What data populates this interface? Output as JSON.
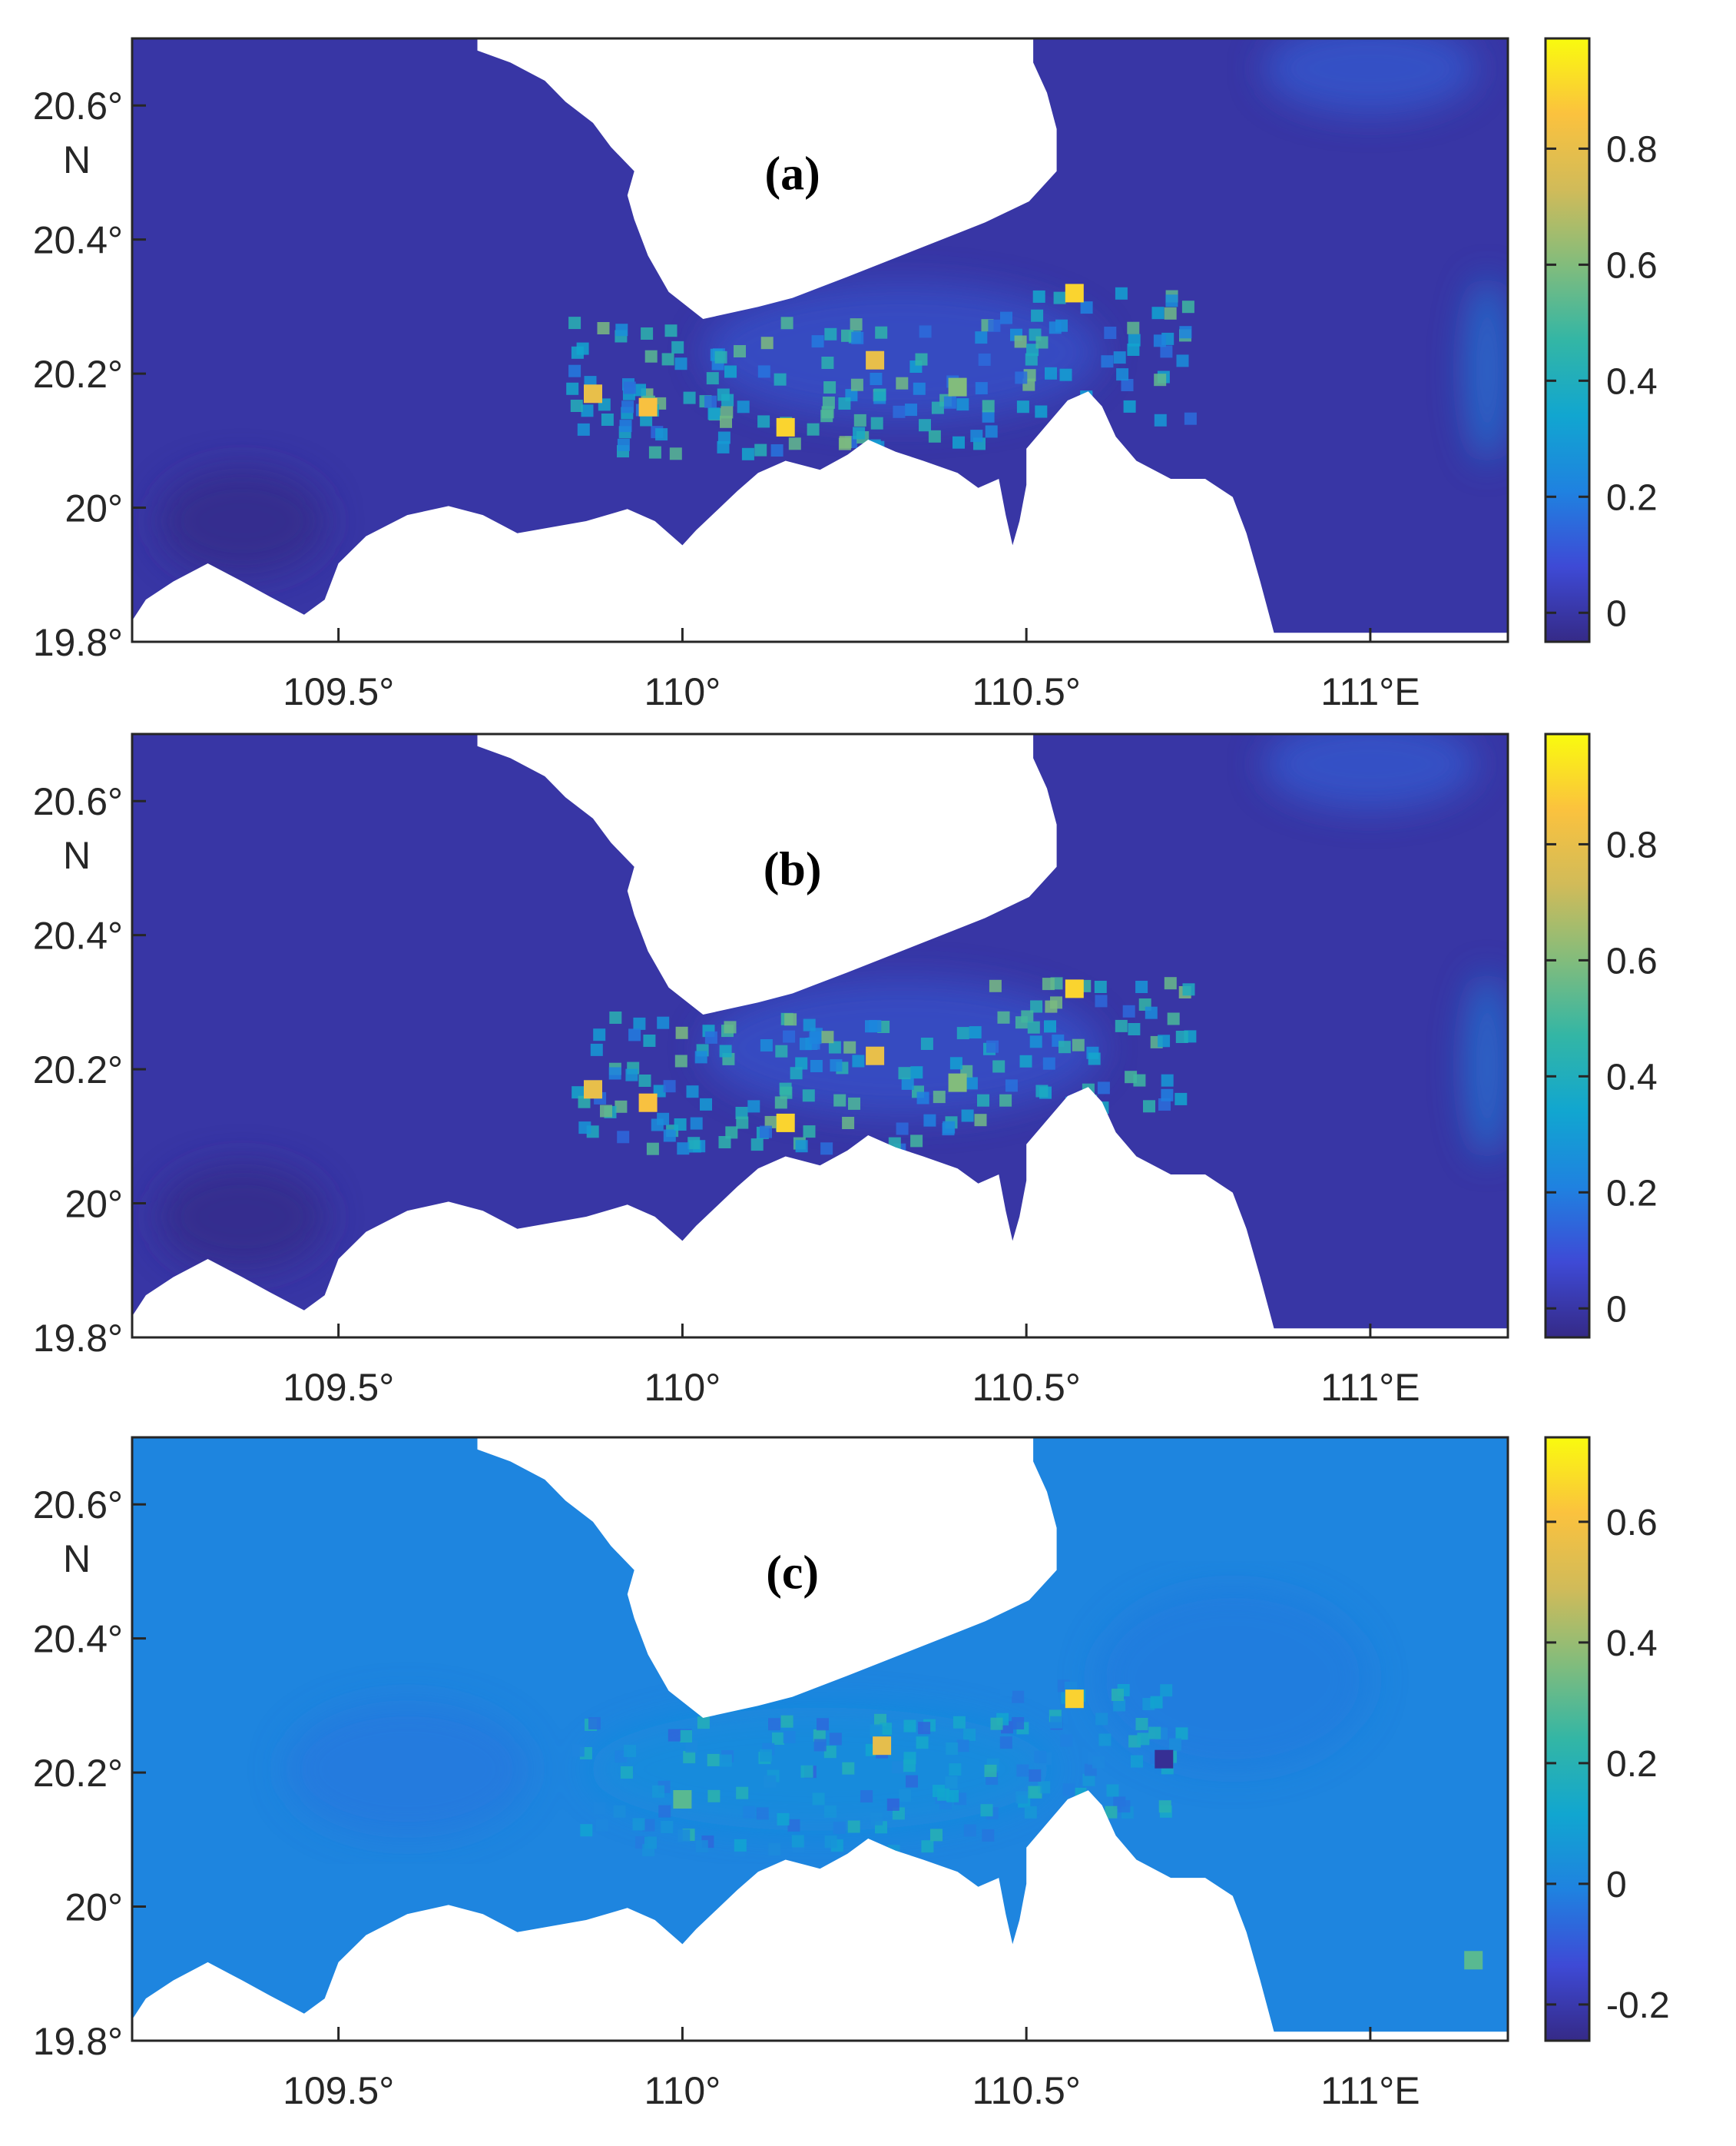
{
  "chart_data": [
    {
      "type": "heatmap",
      "panel_label": "(a)",
      "x_ticks": [
        "109.5°",
        "110°",
        "110.5°",
        "111°E"
      ],
      "y_ticks": [
        "20.6°",
        "N",
        "20.4°",
        "20.2°",
        "20°",
        "19.8°"
      ],
      "xlim": [
        109.2,
        111.2
      ],
      "ylim": [
        19.8,
        20.7
      ],
      "colorbar": {
        "ticks": [
          "0.8",
          "0.6",
          "0.4",
          "0.2",
          "0"
        ],
        "tick_values": [
          0.8,
          0.6,
          0.4,
          0.2,
          0
        ],
        "range": [
          -0.05,
          0.99
        ]
      },
      "colormap": "parula",
      "hotspots": [
        {
          "lon": 110.57,
          "lat": 20.32,
          "value": 0.9
        },
        {
          "lon": 110.28,
          "lat": 20.22,
          "value": 0.8
        },
        {
          "lon": 109.95,
          "lat": 20.15,
          "value": 0.85
        },
        {
          "lon": 110.15,
          "lat": 20.12,
          "value": 0.9
        },
        {
          "lon": 109.87,
          "lat": 20.17,
          "value": 0.8
        },
        {
          "lon": 110.4,
          "lat": 20.18,
          "value": 0.6
        }
      ]
    },
    {
      "type": "heatmap",
      "panel_label": "(b)",
      "x_ticks": [
        "109.5°",
        "110°",
        "110.5°",
        "111°E"
      ],
      "y_ticks": [
        "20.6°",
        "N",
        "20.4°",
        "20.2°",
        "20°",
        "19.8°"
      ],
      "xlim": [
        109.2,
        111.2
      ],
      "ylim": [
        19.8,
        20.7
      ],
      "colorbar": {
        "ticks": [
          "0.8",
          "0.6",
          "0.4",
          "0.2",
          "0"
        ],
        "tick_values": [
          0.8,
          0.6,
          0.4,
          0.2,
          0
        ],
        "range": [
          -0.05,
          0.99
        ]
      },
      "colormap": "parula",
      "hotspots": [
        {
          "lon": 110.57,
          "lat": 20.32,
          "value": 0.9
        },
        {
          "lon": 110.28,
          "lat": 20.22,
          "value": 0.8
        },
        {
          "lon": 109.95,
          "lat": 20.15,
          "value": 0.85
        },
        {
          "lon": 110.15,
          "lat": 20.12,
          "value": 0.9
        },
        {
          "lon": 109.87,
          "lat": 20.17,
          "value": 0.8
        },
        {
          "lon": 110.4,
          "lat": 20.18,
          "value": 0.6
        }
      ]
    },
    {
      "type": "heatmap",
      "panel_label": "(c)",
      "x_ticks": [
        "109.5°",
        "110°",
        "110.5°",
        "111°E"
      ],
      "y_ticks": [
        "20.6°",
        "N",
        "20.4°",
        "20.2°",
        "20°",
        "19.8°"
      ],
      "xlim": [
        109.2,
        111.2
      ],
      "ylim": [
        19.8,
        20.7
      ],
      "colorbar": {
        "ticks": [
          "0.6",
          "0.4",
          "0.2",
          "0",
          "-0.2"
        ],
        "tick_values": [
          0.6,
          0.4,
          0.2,
          0,
          -0.2
        ],
        "range": [
          -0.26,
          0.74
        ]
      },
      "colormap": "parula",
      "hotspots": [
        {
          "lon": 110.57,
          "lat": 20.31,
          "value": 0.65
        },
        {
          "lon": 110.29,
          "lat": 20.24,
          "value": 0.55
        },
        {
          "lon": 110.0,
          "lat": 20.16,
          "value": 0.3
        },
        {
          "lon": 111.15,
          "lat": 19.92,
          "value": 0.3
        },
        {
          "lon": 110.7,
          "lat": 20.22,
          "value": -0.24
        }
      ]
    }
  ],
  "colors": {
    "land": "#ffffff",
    "parula_stops": [
      "#352a87",
      "#3e4ad6",
      "#1f82e0",
      "#11a6d0",
      "#33b6a5",
      "#82bc7c",
      "#d1bb59",
      "#fbc23e",
      "#f9fb0e"
    ]
  }
}
